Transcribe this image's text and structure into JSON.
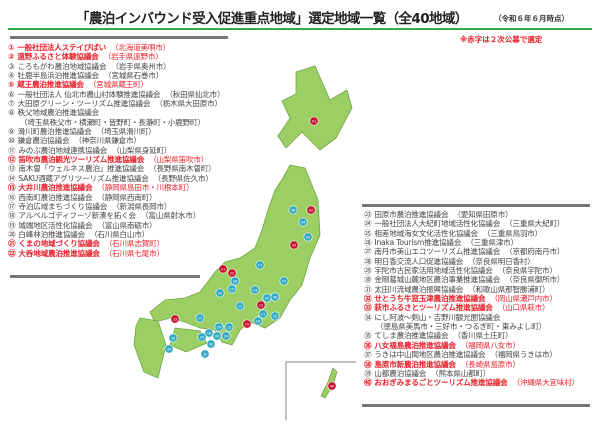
{
  "header": {
    "title": "「農泊インバウンド受入促進重点地域」選定地域一覧（全40地域）",
    "as_of": "（令和６年６月時点）",
    "note": "※赤字は２次公募で選定"
  },
  "colors": {
    "red": "#e8202a",
    "land": "#9bcf63",
    "accent_green": "#3aaa48",
    "marker_teal": "#2fa9c4",
    "marker_red": "#c8102e"
  },
  "left_list": [
    {
      "no": "①",
      "name": "一般社団法人ステイぴばい",
      "loc": "（北海道美唄市）",
      "red": true
    },
    {
      "no": "②",
      "name": "遠野ふるさと体験協議会",
      "loc": "（岩手県遠野市）",
      "red": true
    },
    {
      "no": "③",
      "name": "ころもがわ農泊地域協議会",
      "loc": "（岩手県奥州市）",
      "red": false
    },
    {
      "no": "④",
      "name": "牡鹿半島浜泊推進協議会",
      "loc": "（宮城県石巻市）",
      "red": false
    },
    {
      "no": "⑤",
      "name": "蔵王農泊推進協議会",
      "loc": "（宮城県蔵王町）",
      "red": true
    },
    {
      "no": "⑥",
      "name": "一般社団法人 仙北市農山村体験推進協議会",
      "loc": "（秋田県仙北市）",
      "red": false
    },
    {
      "no": "⑦",
      "name": "大田原グリーン・ツーリズム推進協議会",
      "loc": "（栃木県大田原市）",
      "red": false
    },
    {
      "no": "⑧",
      "name": "秩父地域農泊推進協議会",
      "loc": "",
      "sub": "（埼玉県秩父市・横瀬町・皆野町・長瀞町・小鹿野町）",
      "red": false
    },
    {
      "no": "⑨",
      "name": "滑川町農泊推進協議会",
      "loc": "（埼玉県滑川町）",
      "red": false
    },
    {
      "no": "⑩",
      "name": "鎌倉農泊協議会",
      "loc": "（神奈川県鎌倉市）",
      "red": false
    },
    {
      "no": "⑪",
      "name": "みのぶ農泊地域連携協議会",
      "loc": "（山梨県身延町）",
      "red": false
    },
    {
      "no": "⑫",
      "name": "笛吹市農泊観光ツーリズム推進協議会",
      "loc": "（山梨県笛吹市）",
      "red": true
    },
    {
      "no": "⑬",
      "name": "南木曽「ウェルネス農泊」推進協議会",
      "loc": "（長野県南木曽町）",
      "red": false
    },
    {
      "no": "⑭",
      "name": "SAKU酒蔵アグリツーリズム推進協議会",
      "loc": "（長野県佐久市）",
      "red": false
    },
    {
      "no": "⑮",
      "name": "大井川農泊推進協議会",
      "loc": "（静岡県島田市・川根本町）",
      "red": true
    },
    {
      "no": "⑯",
      "name": "西南町農泊推進協議会",
      "loc": "（静岡県西南町）",
      "red": false
    },
    {
      "no": "⑰",
      "name": "寺泊広域まちづくり協議会",
      "loc": "（新潟県長岡市）",
      "red": false
    },
    {
      "no": "⑱",
      "name": "アルベルゴディフーゾ新湊を拓く会",
      "loc": "（富山県射水市）",
      "red": false
    },
    {
      "no": "⑲",
      "name": "城端地区活性化協議会",
      "loc": "（富山県南砺市）",
      "red": false
    },
    {
      "no": "⑳",
      "name": "白峰林泊推進協議会",
      "loc": "（石川県白山市）",
      "red": false
    },
    {
      "no": "㉑",
      "name": "くまの地域づくり協議会",
      "loc": "（石川県志賀町）",
      "red": true
    },
    {
      "no": "㉒",
      "name": "大呑地域農泊推進協議会",
      "loc": "（石川県七尾市）",
      "red": true
    }
  ],
  "right_list": [
    {
      "no": "㉓",
      "name": "田原市農泊推進協議会",
      "loc": "（愛知県田原市）",
      "red": false
    },
    {
      "no": "㉔",
      "name": "一般社団法人大紀町地域活性化協議会",
      "loc": "（三重県大紀町）",
      "red": false
    },
    {
      "no": "㉕",
      "name": "相差地域海女文化活性化協議会",
      "loc": "（三重県鳥羽市）",
      "red": false
    },
    {
      "no": "㉖",
      "name": "Inaka Tourism推進協議会",
      "loc": "（三重県津市）",
      "red": false
    },
    {
      "no": "㉗",
      "name": "南丹市美山エコツーリズム推進協議会",
      "loc": "（京都府南丹市）",
      "red": false
    },
    {
      "no": "㉘",
      "name": "明日香交流人口促進協議会",
      "loc": "（奈良県明日香村）",
      "red": false
    },
    {
      "no": "㉙",
      "name": "宇陀市古民家活用地域活性化協議会",
      "loc": "（奈良県宇陀市）",
      "red": false
    },
    {
      "no": "㉚",
      "name": "金剛葛城山麓地区農泊事業推進協議会",
      "loc": "（奈良県御所市）",
      "red": false
    },
    {
      "no": "㉛",
      "name": "太田川流域農泊振興協議会",
      "loc": "（和歌山県那智勝浦町）",
      "red": false
    },
    {
      "no": "㉜",
      "name": "せとうち牛窓玉津農泊推進協議会",
      "loc": "（岡山県瀬戸内市）",
      "red": true
    },
    {
      "no": "㉝",
      "name": "萩市ふるさとツーリズム推進協議会",
      "loc": "（山口県萩市）",
      "red": true
    },
    {
      "no": "㉞",
      "name": "にし阿波～剣山・吉野川観光圏協議会",
      "loc": "",
      "sub": "（徳島県美馬市・三好市・つるぎ町・東みよし町）",
      "red": false
    },
    {
      "no": "㉟",
      "name": "てしま農泊推進協議会",
      "loc": "（香川県土庄町）",
      "red": false
    },
    {
      "no": "㊱",
      "name": "八女福島農泊推進協議会",
      "loc": "（福岡県八女市）",
      "red": true
    },
    {
      "no": "㊲",
      "name": "うきは中山間地区農泊推進協議会",
      "loc": "（福岡県うきは市）",
      "red": false
    },
    {
      "no": "㊳",
      "name": "島原市新農泊推進協議会",
      "loc": "（長崎県島原市）",
      "red": true
    },
    {
      "no": "㊴",
      "name": "山都農泊協議会",
      "loc": "（熊本県山都町）",
      "red": false
    },
    {
      "no": "㊵",
      "name": "おおぎみまるごとツーリズム推進協議会",
      "loc": "（沖縄県大宜味村）",
      "red": true
    }
  ],
  "map": {
    "markers": [
      {
        "no": "01",
        "red": true
      },
      {
        "no": "06",
        "red": false
      },
      {
        "no": "02",
        "red": true
      },
      {
        "no": "04",
        "red": false
      },
      {
        "no": "03",
        "red": false
      },
      {
        "no": "05",
        "red": true
      },
      {
        "no": "17",
        "red": false
      },
      {
        "no": "21",
        "red": true
      },
      {
        "no": "22",
        "red": true
      },
      {
        "no": "18",
        "red": false
      },
      {
        "no": "19",
        "red": false
      },
      {
        "no": "20",
        "red": false
      },
      {
        "no": "14",
        "red": false
      },
      {
        "no": "07",
        "red": false
      },
      {
        "no": "09",
        "red": false
      },
      {
        "no": "08",
        "red": false
      },
      {
        "no": "12",
        "red": true
      },
      {
        "no": "13",
        "red": false
      },
      {
        "no": "11",
        "red": false
      },
      {
        "no": "16",
        "red": false
      },
      {
        "no": "10",
        "red": false
      },
      {
        "no": "15",
        "red": true
      },
      {
        "no": "27",
        "red": false
      },
      {
        "no": "33",
        "red": true
      },
      {
        "no": "35",
        "red": false
      },
      {
        "no": "34",
        "red": false
      },
      {
        "no": "26",
        "red": false
      },
      {
        "no": "29",
        "red": false
      },
      {
        "no": "23",
        "red": false
      },
      {
        "no": "28",
        "red": false
      },
      {
        "no": "24",
        "red": false
      },
      {
        "no": "25",
        "red": false
      },
      {
        "no": "30",
        "red": false
      },
      {
        "no": "31",
        "red": false
      },
      {
        "no": "40",
        "red": true
      }
    ]
  }
}
